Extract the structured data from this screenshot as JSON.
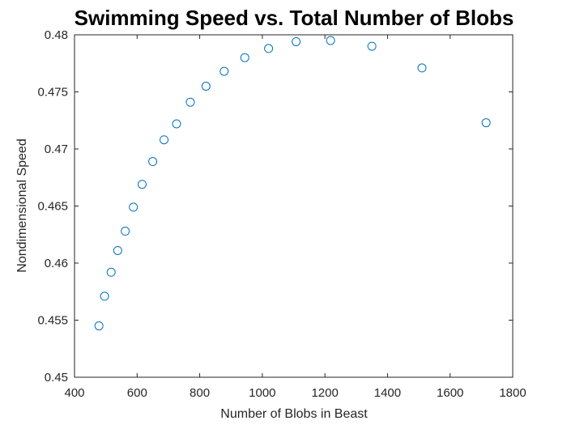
{
  "chart_data": {
    "type": "scatter",
    "title": "Swimming Speed vs. Total Number of Blobs",
    "xlabel": "Number of Blobs in Beast",
    "ylabel": "Nondimensional Speed",
    "xlim": [
      400,
      1800
    ],
    "ylim": [
      0.45,
      0.48
    ],
    "xticks": [
      400,
      600,
      800,
      1000,
      1200,
      1400,
      1600,
      1800
    ],
    "xtick_labels": [
      "400",
      "600",
      "800",
      "1000",
      "1200",
      "1400",
      "1600",
      "1800"
    ],
    "yticks": [
      0.45,
      0.455,
      0.46,
      0.465,
      0.47,
      0.475,
      0.48
    ],
    "ytick_labels": [
      "0.45",
      "0.455",
      "0.46",
      "0.465",
      "0.47",
      "0.475",
      "0.48"
    ],
    "grid": false,
    "marker": "open-circle",
    "series_color": "#0072BD",
    "axis_color": "#262626",
    "x": [
      478,
      496,
      517,
      538,
      562,
      588,
      616,
      650,
      686,
      726,
      770,
      820,
      878,
      944,
      1020,
      1108,
      1218,
      1350,
      1510,
      1715
    ],
    "y": [
      0.4545,
      0.4571,
      0.4592,
      0.4611,
      0.4628,
      0.4649,
      0.4669,
      0.4689,
      0.4708,
      0.4722,
      0.4741,
      0.4755,
      0.4768,
      0.478,
      0.4788,
      0.4794,
      0.4795,
      0.479,
      0.4771,
      0.4723
    ]
  }
}
